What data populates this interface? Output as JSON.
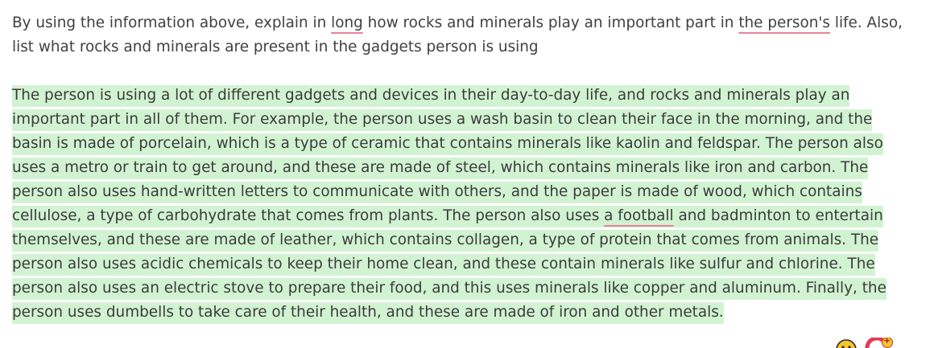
{
  "prompt": {
    "line1_part1": "By using the information above, explain in ",
    "line1_link1": "long",
    "line1_part2": " how rocks and minerals play an important part in ",
    "line1_link2": "the person's",
    "line1_part3": " life. Also,",
    "line2": "list what rocks and minerals are present in the gadgets person is using"
  },
  "answer": {
    "lines": [
      "The person is using a lot of different gadgets and devices in their day-to-day life, and rocks and minerals play an ",
      "important part in all of them. For example, the person uses a wash basin to clean their face in the morning, and the ",
      "basin is made of porcelain, which is a type of ceramic that contains minerals like kaolin and feldspar. The person also ",
      "uses a metro or train to get around, and these are made of steel, which contains minerals like iron and carbon. The ",
      "person also uses hand-written letters to communicate with others, and the paper is made of wood, which contains ",
      "cellulose, a type of carbohydrate that comes from plants. The person also uses ",
      "themselves, and these are made of leather, which contains collagen, a type of protein that comes from animals. The ",
      "person also uses acidic chemicals to keep their home clean, and these contain minerals like sulfur and chlorine. The ",
      "person also uses an electric stove to prepare their food, and this uses minerals like copper and aluminum. Finally, the ",
      "person uses dumbells to take care of their health, and these are made of iron and other metals."
    ],
    "line6_link": "a football",
    "line6_rest": " and badminton to entertain "
  },
  "icons": {
    "emoji": "smiley-face-icon",
    "add_reaction": "add-reaction-icon",
    "plus": "+",
    "accent_color": "#e63950",
    "highlight_color": "#d2f3d2",
    "underline_color": "#e8829a"
  }
}
